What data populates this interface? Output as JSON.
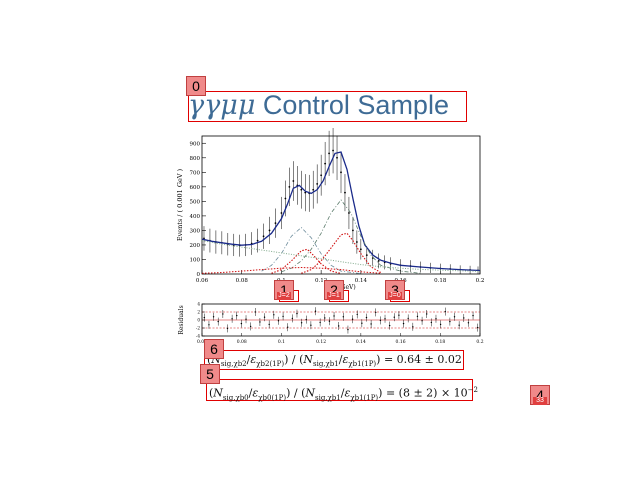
{
  "slide": {
    "title_greek": "γγμμ",
    "title_text": " Control Sample",
    "formula1": {
      "lhs_sub1": "sig,χb2",
      "lhs_eps1": "χb2(1P)",
      "rhs_sub1": "sig,χb1",
      "rhs_eps1": "χb1(1P)",
      "result": "= 0.64 ± 0.02"
    },
    "formula2": {
      "lhs_sub1": "sig,χb0",
      "lhs_eps1": "χb0(1P)",
      "rhs_sub1": "sig,χb1",
      "rhs_eps1": "χb1(1P)",
      "result": "= (8 ± 2) × 10",
      "exponent": "−2"
    }
  },
  "markers": [
    {
      "id": "0",
      "sub": ""
    },
    {
      "id": "1",
      "sub": "J=2"
    },
    {
      "id": "2",
      "sub": "J=1"
    },
    {
      "id": "3",
      "sub": "J=0"
    },
    {
      "id": "4",
      "sub": "33"
    },
    {
      "id": "5",
      "sub": ""
    },
    {
      "id": "6",
      "sub": ""
    }
  ],
  "colors": {
    "title": "#3e6b95",
    "annotation": "#e00000",
    "fit": "#1a2a8a",
    "signal": "#d01010",
    "background": "#7fa88a"
  },
  "chart_data": [
    {
      "type": "line",
      "ylabel": "Events / ( 0.001 GeV )",
      "xlabel": "(GeV)",
      "xlim": [
        0.06,
        0.2
      ],
      "ylim": [
        0,
        950
      ],
      "xticks": [
        "0.06",
        "0.08",
        "0.1",
        "0.12",
        "0.14",
        "0.16",
        "0.18",
        "0.2"
      ],
      "yticks": [
        "0",
        "100",
        "200",
        "300",
        "400",
        "500",
        "600",
        "700",
        "800",
        "900"
      ],
      "series": [
        {
          "style": "data",
          "x": [
            0.061,
            0.064,
            0.067,
            0.07,
            0.073,
            0.076,
            0.079,
            0.082,
            0.085,
            0.088,
            0.091,
            0.094,
            0.097,
            0.1,
            0.102,
            0.104,
            0.106,
            0.108,
            0.11,
            0.112,
            0.114,
            0.116,
            0.118,
            0.12,
            0.122,
            0.124,
            0.126,
            0.128,
            0.13,
            0.132,
            0.134,
            0.136,
            0.138,
            0.14,
            0.143,
            0.146,
            0.149,
            0.152,
            0.155,
            0.16,
            0.165,
            0.17,
            0.175,
            0.18,
            0.185,
            0.19,
            0.195,
            0.199
          ],
          "y": [
            245,
            230,
            220,
            215,
            205,
            200,
            195,
            200,
            210,
            230,
            260,
            300,
            350,
            420,
            520,
            600,
            640,
            610,
            580,
            560,
            555,
            580,
            620,
            680,
            760,
            830,
            850,
            800,
            700,
            560,
            420,
            300,
            220,
            170,
            130,
            110,
            90,
            80,
            70,
            60,
            55,
            48,
            42,
            38,
            35,
            30,
            28,
            25
          ]
        },
        {
          "style": "fit",
          "x": [
            0.06,
            0.065,
            0.07,
            0.075,
            0.08,
            0.085,
            0.09,
            0.095,
            0.1,
            0.103,
            0.106,
            0.109,
            0.112,
            0.115,
            0.118,
            0.121,
            0.124,
            0.127,
            0.13,
            0.133,
            0.136,
            0.139,
            0.142,
            0.146,
            0.15,
            0.155,
            0.16,
            0.17,
            0.18,
            0.19,
            0.2
          ],
          "y": [
            240,
            225,
            215,
            205,
            198,
            203,
            225,
            280,
            380,
            480,
            590,
            610,
            570,
            555,
            580,
            640,
            740,
            830,
            840,
            720,
            520,
            330,
            200,
            130,
            95,
            75,
            60,
            48,
            38,
            30,
            24
          ]
        },
        {
          "style": "component-j1",
          "x": [
            0.1,
            0.105,
            0.11,
            0.115,
            0.12,
            0.125,
            0.13,
            0.135,
            0.14,
            0.145,
            0.15,
            0.16,
            0.17
          ],
          "y": [
            15,
            40,
            90,
            170,
            280,
            420,
            510,
            420,
            260,
            130,
            60,
            20,
            5
          ]
        },
        {
          "style": "component-j2",
          "x": [
            0.09,
            0.095,
            0.1,
            0.105,
            0.11,
            0.115,
            0.12,
            0.125,
            0.13,
            0.14
          ],
          "y": [
            20,
            60,
            140,
            260,
            320,
            250,
            140,
            60,
            20,
            3
          ]
        },
        {
          "style": "signal-j2",
          "x": [
            0.095,
            0.1,
            0.105,
            0.11,
            0.113,
            0.116,
            0.12,
            0.125,
            0.13
          ],
          "y": [
            5,
            30,
            90,
            160,
            170,
            130,
            70,
            20,
            4
          ]
        },
        {
          "style": "signal-j1",
          "x": [
            0.11,
            0.115,
            0.12,
            0.125,
            0.13,
            0.133,
            0.136,
            0.14,
            0.145,
            0.15
          ],
          "y": [
            5,
            30,
            90,
            180,
            270,
            280,
            230,
            140,
            50,
            10
          ]
        },
        {
          "style": "signal-j0",
          "x": [
            0.06,
            0.07,
            0.08,
            0.09,
            0.1,
            0.11,
            0.12,
            0.13,
            0.14,
            0.15
          ],
          "y": [
            5,
            10,
            20,
            30,
            40,
            45,
            40,
            30,
            15,
            5
          ]
        },
        {
          "style": "bkg",
          "x": [
            0.06,
            0.07,
            0.08,
            0.09,
            0.1,
            0.11,
            0.12,
            0.13,
            0.14,
            0.15,
            0.16,
            0.17,
            0.18,
            0.19,
            0.2
          ],
          "y": [
            230,
            205,
            185,
            165,
            145,
            125,
            105,
            85,
            65,
            50,
            40,
            32,
            26,
            22,
            18
          ]
        }
      ]
    },
    {
      "type": "scatter",
      "ylabel": "Residuals",
      "xlim": [
        0.06,
        0.2
      ],
      "ylim": [
        -4,
        4
      ],
      "xticks": [
        "0.06",
        "0.08",
        "0.1",
        "0.12",
        "0.14",
        "0.16",
        "0.18",
        "0.2"
      ],
      "yticks": [
        "-4",
        "-2",
        "0",
        "2",
        "4"
      ],
      "values": [
        0.6,
        -1.2,
        0.8,
        -0.4,
        1.5,
        -2.1,
        0.3,
        1.1,
        -0.9,
        0.2,
        -1.6,
        2.0,
        -0.5,
        0.7,
        -1.1,
        1.3,
        -0.2,
        0.9,
        -1.8,
        0.4,
        1.6,
        -0.7,
        0.1,
        -1.3,
        2.2,
        -0.6,
        0.5,
        -0.3,
        1.0,
        -1.5,
        0.8,
        -2.4,
        0.2,
        1.4,
        -0.8,
        0.6,
        -1.0,
        1.9,
        -0.1,
        0.3,
        -1.4,
        0.7,
        1.2,
        -0.9,
        0.4,
        -1.7,
        0.9,
        -0.2,
        1.5,
        -0.6,
        0.3,
        -1.1,
        2.1,
        -0.4,
        0.8,
        -1.3,
        0.5,
        -0.7,
        1.1,
        -1.9
      ]
    }
  ]
}
